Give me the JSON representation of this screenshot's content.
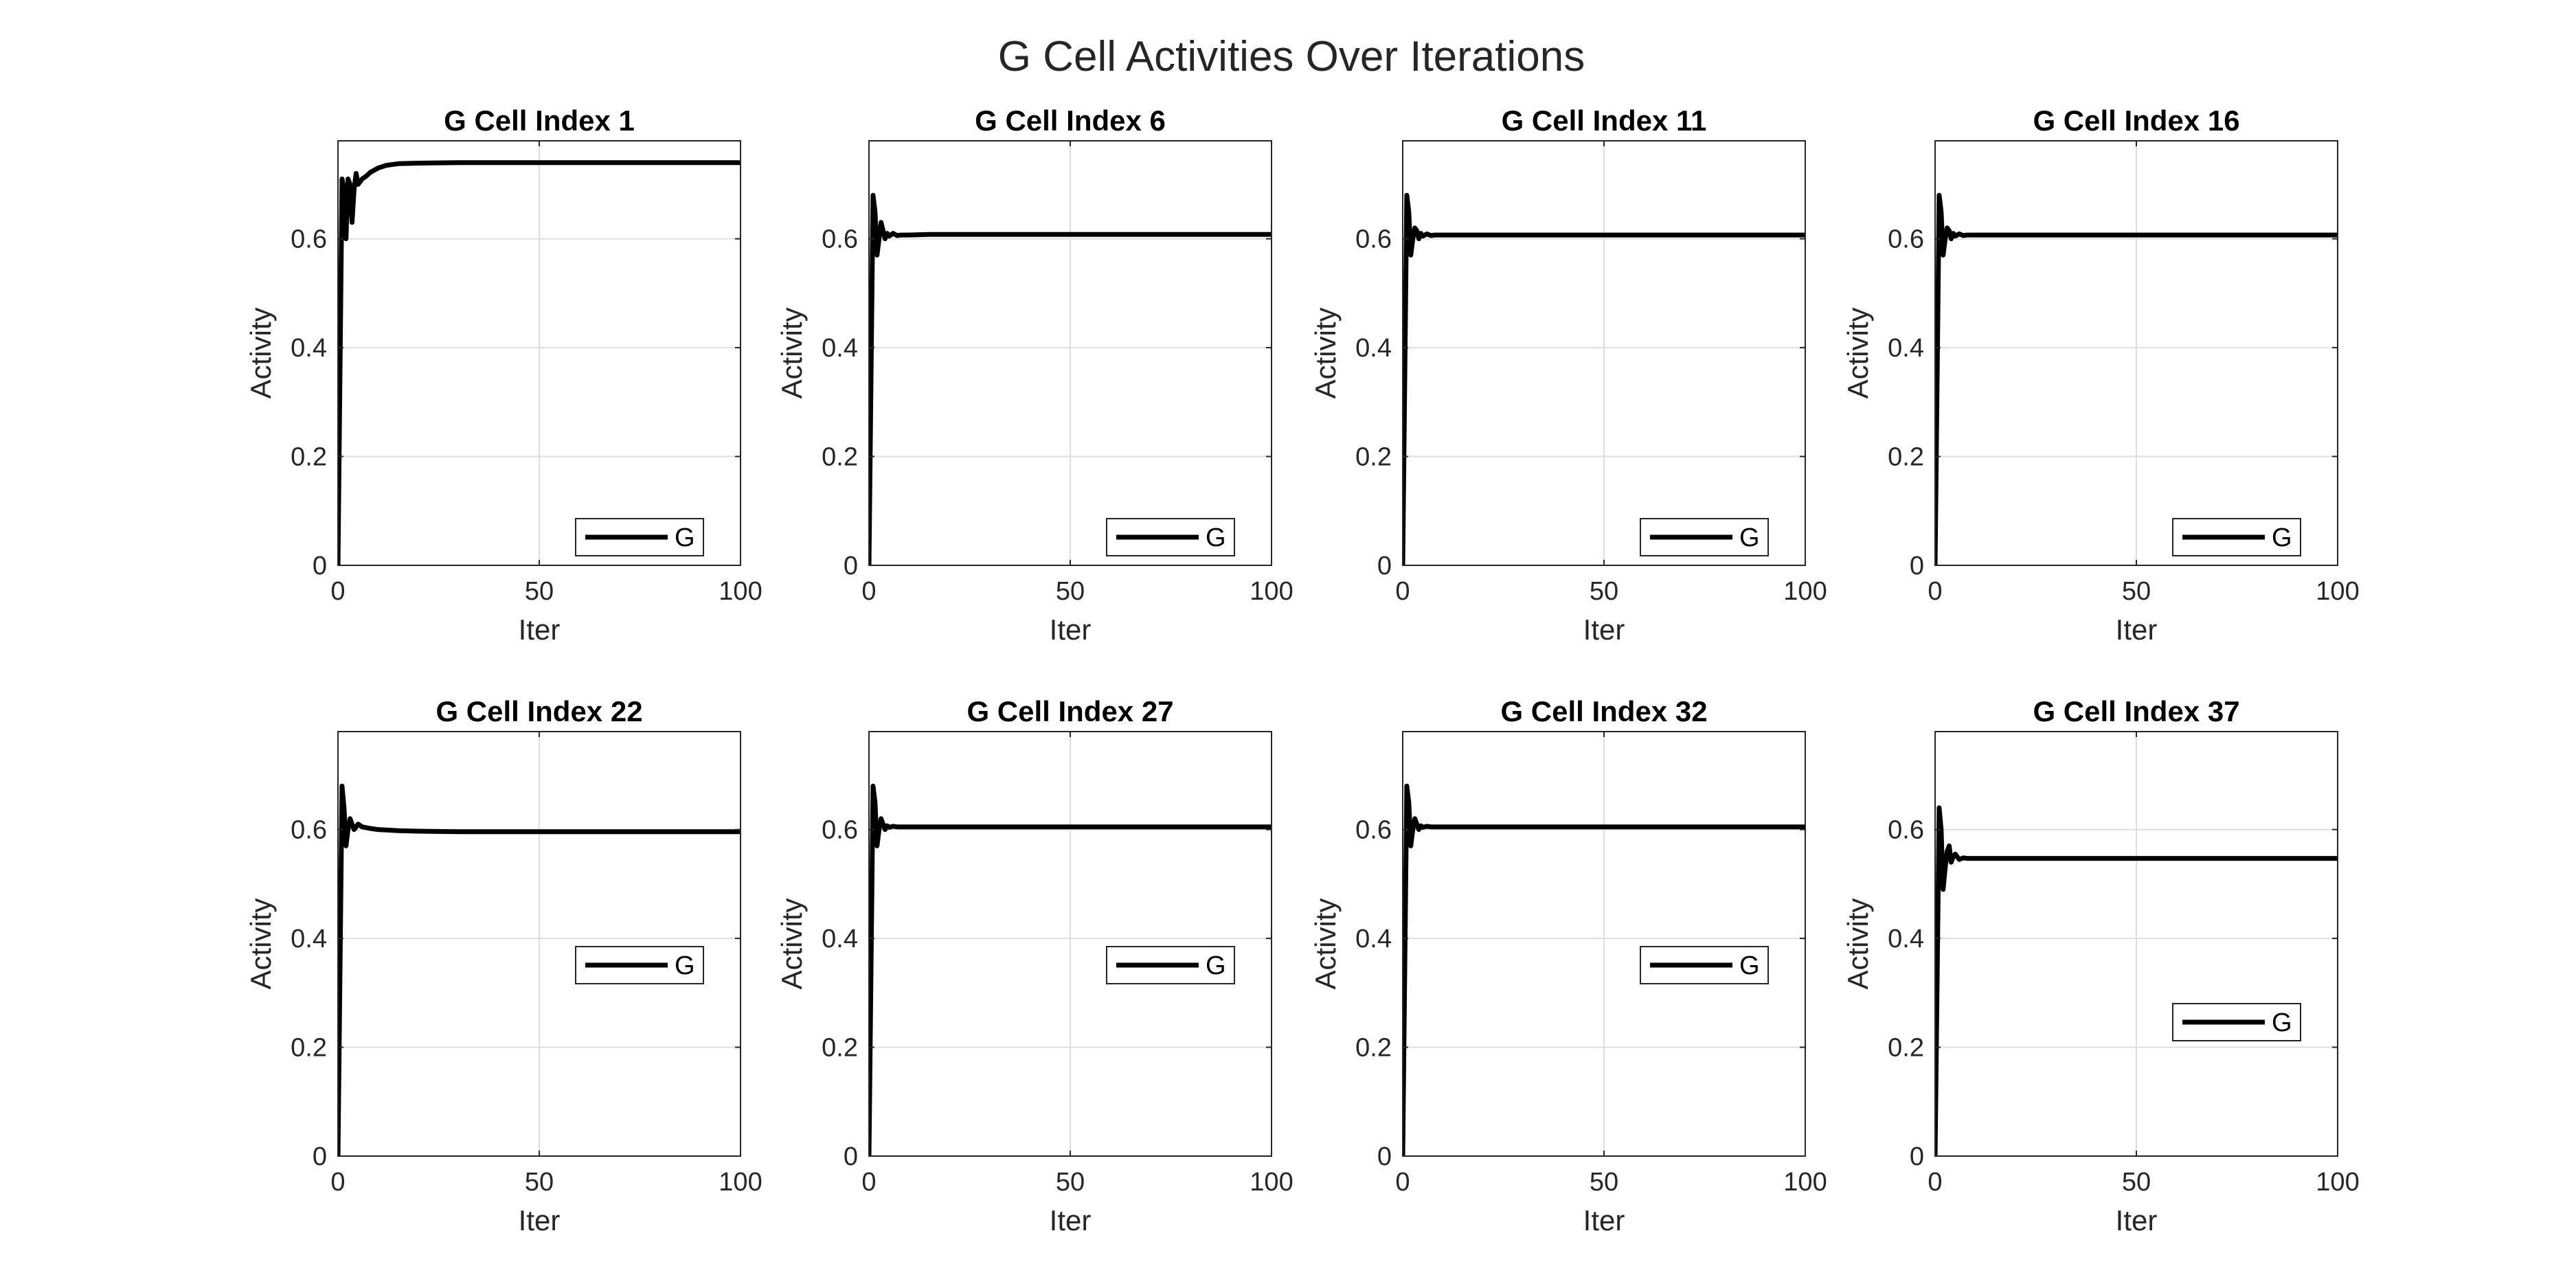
{
  "figure": {
    "title": "G Cell Activities Over Iterations"
  },
  "chart_data": [
    {
      "type": "line",
      "title": "G Cell Index 1",
      "xlabel": "Iter",
      "ylabel": "Activity",
      "xlim": [
        0,
        100
      ],
      "ylim": [
        0,
        0.78
      ],
      "xticks": [
        0,
        50,
        100
      ],
      "yticks": [
        0,
        0.2,
        0.4,
        0.6
      ],
      "grid": true,
      "legend": {
        "entries": [
          "G"
        ],
        "placement": "bottom-right"
      },
      "series": [
        {
          "name": "G",
          "color": "#000000",
          "x": [
            0,
            1,
            1.5,
            2,
            2.5,
            3,
            3.5,
            4,
            4.5,
            5,
            6,
            7,
            8,
            10,
            12,
            15,
            20,
            30,
            50,
            100
          ],
          "y": [
            0,
            0.71,
            0.69,
            0.6,
            0.71,
            0.7,
            0.63,
            0.69,
            0.72,
            0.7,
            0.71,
            0.715,
            0.722,
            0.73,
            0.735,
            0.738,
            0.739,
            0.74,
            0.74,
            0.74
          ]
        }
      ]
    },
    {
      "type": "line",
      "title": "G Cell Index 6",
      "xlabel": "Iter",
      "ylabel": "Activity",
      "xlim": [
        0,
        100
      ],
      "ylim": [
        0,
        0.78
      ],
      "xticks": [
        0,
        50,
        100
      ],
      "yticks": [
        0,
        0.2,
        0.4,
        0.6
      ],
      "grid": true,
      "legend": {
        "entries": [
          "G"
        ],
        "placement": "bottom-right"
      },
      "series": [
        {
          "name": "G",
          "color": "#000000",
          "x": [
            0,
            1,
            1.5,
            2,
            2.5,
            3,
            3.5,
            4,
            4.5,
            5,
            6,
            7,
            8,
            10,
            15,
            100
          ],
          "y": [
            0,
            0.68,
            0.65,
            0.57,
            0.6,
            0.63,
            0.615,
            0.6,
            0.61,
            0.605,
            0.61,
            0.606,
            0.607,
            0.607,
            0.608,
            0.608
          ]
        }
      ]
    },
    {
      "type": "line",
      "title": "G Cell Index 11",
      "xlabel": "Iter",
      "ylabel": "Activity",
      "xlim": [
        0,
        100
      ],
      "ylim": [
        0,
        0.78
      ],
      "xticks": [
        0,
        50,
        100
      ],
      "yticks": [
        0,
        0.2,
        0.4,
        0.6
      ],
      "grid": true,
      "legend": {
        "entries": [
          "G"
        ],
        "placement": "bottom-right"
      },
      "series": [
        {
          "name": "G",
          "color": "#000000",
          "x": [
            0,
            1,
            1.5,
            2,
            2.5,
            3,
            3.5,
            4,
            4.5,
            5,
            6,
            7,
            8,
            10,
            15,
            100
          ],
          "y": [
            0,
            0.68,
            0.65,
            0.57,
            0.6,
            0.62,
            0.615,
            0.6,
            0.61,
            0.605,
            0.609,
            0.606,
            0.607,
            0.607,
            0.607,
            0.607
          ]
        }
      ]
    },
    {
      "type": "line",
      "title": "G Cell Index 16",
      "xlabel": "Iter",
      "ylabel": "Activity",
      "xlim": [
        0,
        100
      ],
      "ylim": [
        0,
        0.78
      ],
      "xticks": [
        0,
        50,
        100
      ],
      "yticks": [
        0,
        0.2,
        0.4,
        0.6
      ],
      "grid": true,
      "legend": {
        "entries": [
          "G"
        ],
        "placement": "bottom-right"
      },
      "series": [
        {
          "name": "G",
          "color": "#000000",
          "x": [
            0,
            1,
            1.5,
            2,
            2.5,
            3,
            3.5,
            4,
            4.5,
            5,
            6,
            7,
            8,
            10,
            15,
            100
          ],
          "y": [
            0,
            0.68,
            0.65,
            0.57,
            0.6,
            0.62,
            0.615,
            0.6,
            0.61,
            0.605,
            0.609,
            0.606,
            0.607,
            0.607,
            0.607,
            0.607
          ]
        }
      ]
    },
    {
      "type": "line",
      "title": "G Cell Index 22",
      "xlabel": "Iter",
      "ylabel": "Activity",
      "xlim": [
        0,
        100
      ],
      "ylim": [
        0,
        0.78
      ],
      "xticks": [
        0,
        50,
        100
      ],
      "yticks": [
        0,
        0.2,
        0.4,
        0.6
      ],
      "grid": true,
      "legend": {
        "entries": [
          "G"
        ],
        "placement": "right"
      },
      "series": [
        {
          "name": "G",
          "color": "#000000",
          "x": [
            0,
            1,
            1.5,
            2,
            2.5,
            3,
            3.5,
            4,
            4.5,
            5,
            6,
            8,
            10,
            15,
            20,
            30,
            50,
            100
          ],
          "y": [
            0,
            0.68,
            0.64,
            0.57,
            0.6,
            0.62,
            0.61,
            0.6,
            0.605,
            0.61,
            0.605,
            0.602,
            0.6,
            0.598,
            0.597,
            0.596,
            0.596,
            0.596
          ]
        }
      ]
    },
    {
      "type": "line",
      "title": "G Cell Index 27",
      "xlabel": "Iter",
      "ylabel": "Activity",
      "xlim": [
        0,
        100
      ],
      "ylim": [
        0,
        0.78
      ],
      "xticks": [
        0,
        50,
        100
      ],
      "yticks": [
        0,
        0.2,
        0.4,
        0.6
      ],
      "grid": true,
      "legend": {
        "entries": [
          "G"
        ],
        "placement": "right"
      },
      "series": [
        {
          "name": "G",
          "color": "#000000",
          "x": [
            0,
            1,
            1.5,
            2,
            2.5,
            3,
            3.5,
            4,
            4.5,
            5,
            6,
            7,
            8,
            10,
            15,
            100
          ],
          "y": [
            0,
            0.68,
            0.65,
            0.57,
            0.6,
            0.62,
            0.61,
            0.6,
            0.607,
            0.604,
            0.606,
            0.605,
            0.605,
            0.605,
            0.605,
            0.605
          ]
        }
      ]
    },
    {
      "type": "line",
      "title": "G Cell Index 32",
      "xlabel": "Iter",
      "ylabel": "Activity",
      "xlim": [
        0,
        100
      ],
      "ylim": [
        0,
        0.78
      ],
      "xticks": [
        0,
        50,
        100
      ],
      "yticks": [
        0,
        0.2,
        0.4,
        0.6
      ],
      "grid": true,
      "legend": {
        "entries": [
          "G"
        ],
        "placement": "right"
      },
      "series": [
        {
          "name": "G",
          "color": "#000000",
          "x": [
            0,
            1,
            1.5,
            2,
            2.5,
            3,
            3.5,
            4,
            4.5,
            5,
            6,
            7,
            8,
            10,
            15,
            100
          ],
          "y": [
            0,
            0.68,
            0.65,
            0.57,
            0.6,
            0.62,
            0.61,
            0.6,
            0.607,
            0.604,
            0.606,
            0.605,
            0.605,
            0.605,
            0.605,
            0.605
          ]
        }
      ]
    },
    {
      "type": "line",
      "title": "G Cell Index 37",
      "xlabel": "Iter",
      "ylabel": "Activity",
      "xlim": [
        0,
        100
      ],
      "ylim": [
        0,
        0.78
      ],
      "xticks": [
        0,
        50,
        100
      ],
      "yticks": [
        0,
        0.2,
        0.4,
        0.6
      ],
      "grid": true,
      "legend": {
        "entries": [
          "G"
        ],
        "placement": "lower-right"
      },
      "series": [
        {
          "name": "G",
          "color": "#000000",
          "x": [
            0,
            1,
            1.5,
            2,
            2.5,
            3,
            3.5,
            4,
            4.5,
            5,
            6,
            7,
            8,
            10,
            15,
            100
          ],
          "y": [
            0,
            0.64,
            0.6,
            0.49,
            0.53,
            0.56,
            0.57,
            0.54,
            0.55,
            0.555,
            0.545,
            0.548,
            0.547,
            0.547,
            0.547,
            0.547
          ]
        }
      ]
    }
  ]
}
